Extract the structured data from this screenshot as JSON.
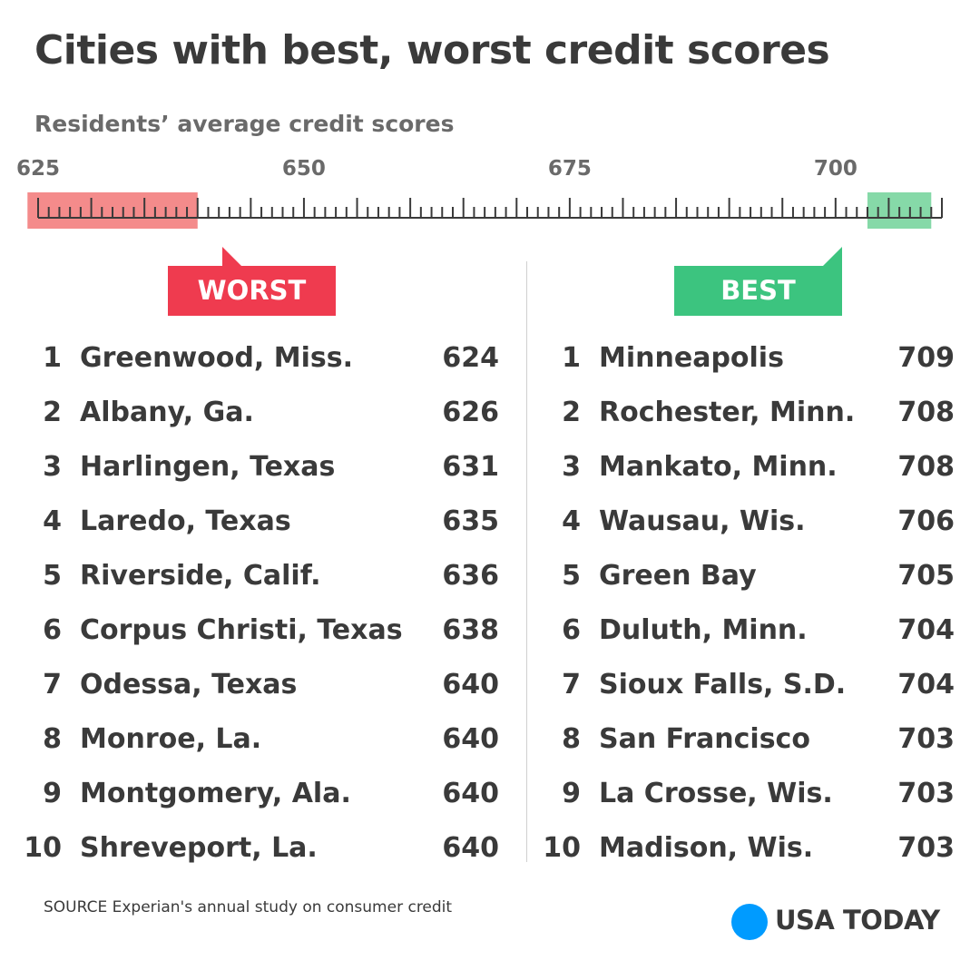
{
  "title": "Cities with best, worst credit scores",
  "subtitle": "Residents’ average credit scores",
  "chart_data": {
    "type": "table",
    "scale": {
      "min": 625,
      "max": 710,
      "ticks": [
        625,
        650,
        675,
        700
      ],
      "worst_range": [
        624,
        640
      ],
      "best_range": [
        703,
        709
      ]
    },
    "worst": {
      "label": "WORST",
      "rows": [
        {
          "rank": "1",
          "city": "Greenwood, Miss.",
          "score": "624"
        },
        {
          "rank": "2",
          "city": "Albany, Ga.",
          "score": "626"
        },
        {
          "rank": "3",
          "city": "Harlingen, Texas",
          "score": "631"
        },
        {
          "rank": "4",
          "city": "Laredo, Texas",
          "score": "635"
        },
        {
          "rank": "5",
          "city": "Riverside, Calif.",
          "score": "636"
        },
        {
          "rank": "6",
          "city": "Corpus Christi, Texas",
          "score": "638"
        },
        {
          "rank": "7",
          "city": "Odessa, Texas",
          "score": "640"
        },
        {
          "rank": "8",
          "city": "Monroe, La.",
          "score": "640"
        },
        {
          "rank": "9",
          "city": "Montgomery, Ala.",
          "score": "640"
        },
        {
          "rank": "10",
          "city": "Shreveport, La.",
          "score": "640"
        }
      ]
    },
    "best": {
      "label": "BEST",
      "rows": [
        {
          "rank": "1",
          "city": "Minneapolis",
          "score": "709"
        },
        {
          "rank": "2",
          "city": "Rochester, Minn.",
          "score": "708"
        },
        {
          "rank": "3",
          "city": "Mankato, Minn.",
          "score": "708"
        },
        {
          "rank": "4",
          "city": "Wausau, Wis.",
          "score": "706"
        },
        {
          "rank": "5",
          "city": "Green Bay",
          "score": "705"
        },
        {
          "rank": "6",
          "city": "Duluth, Minn.",
          "score": "704"
        },
        {
          "rank": "7",
          "city": "Sioux Falls, S.D.",
          "score": "704"
        },
        {
          "rank": "8",
          "city": "San Francisco",
          "score": "703"
        },
        {
          "rank": "9",
          "city": "La Crosse, Wis.",
          "score": "703"
        },
        {
          "rank": "10",
          "city": "Madison, Wis.",
          "score": "703"
        }
      ]
    }
  },
  "source": "SOURCE Experian's annual study on consumer credit",
  "logo": "USA TODAY",
  "colors": {
    "worst": "#ef3b4f",
    "worst_band": "#f48b8b",
    "best": "#3cc47f",
    "best_band": "#86d9a8",
    "logo_dot": "#009bff",
    "text": "#3a3a3a"
  }
}
